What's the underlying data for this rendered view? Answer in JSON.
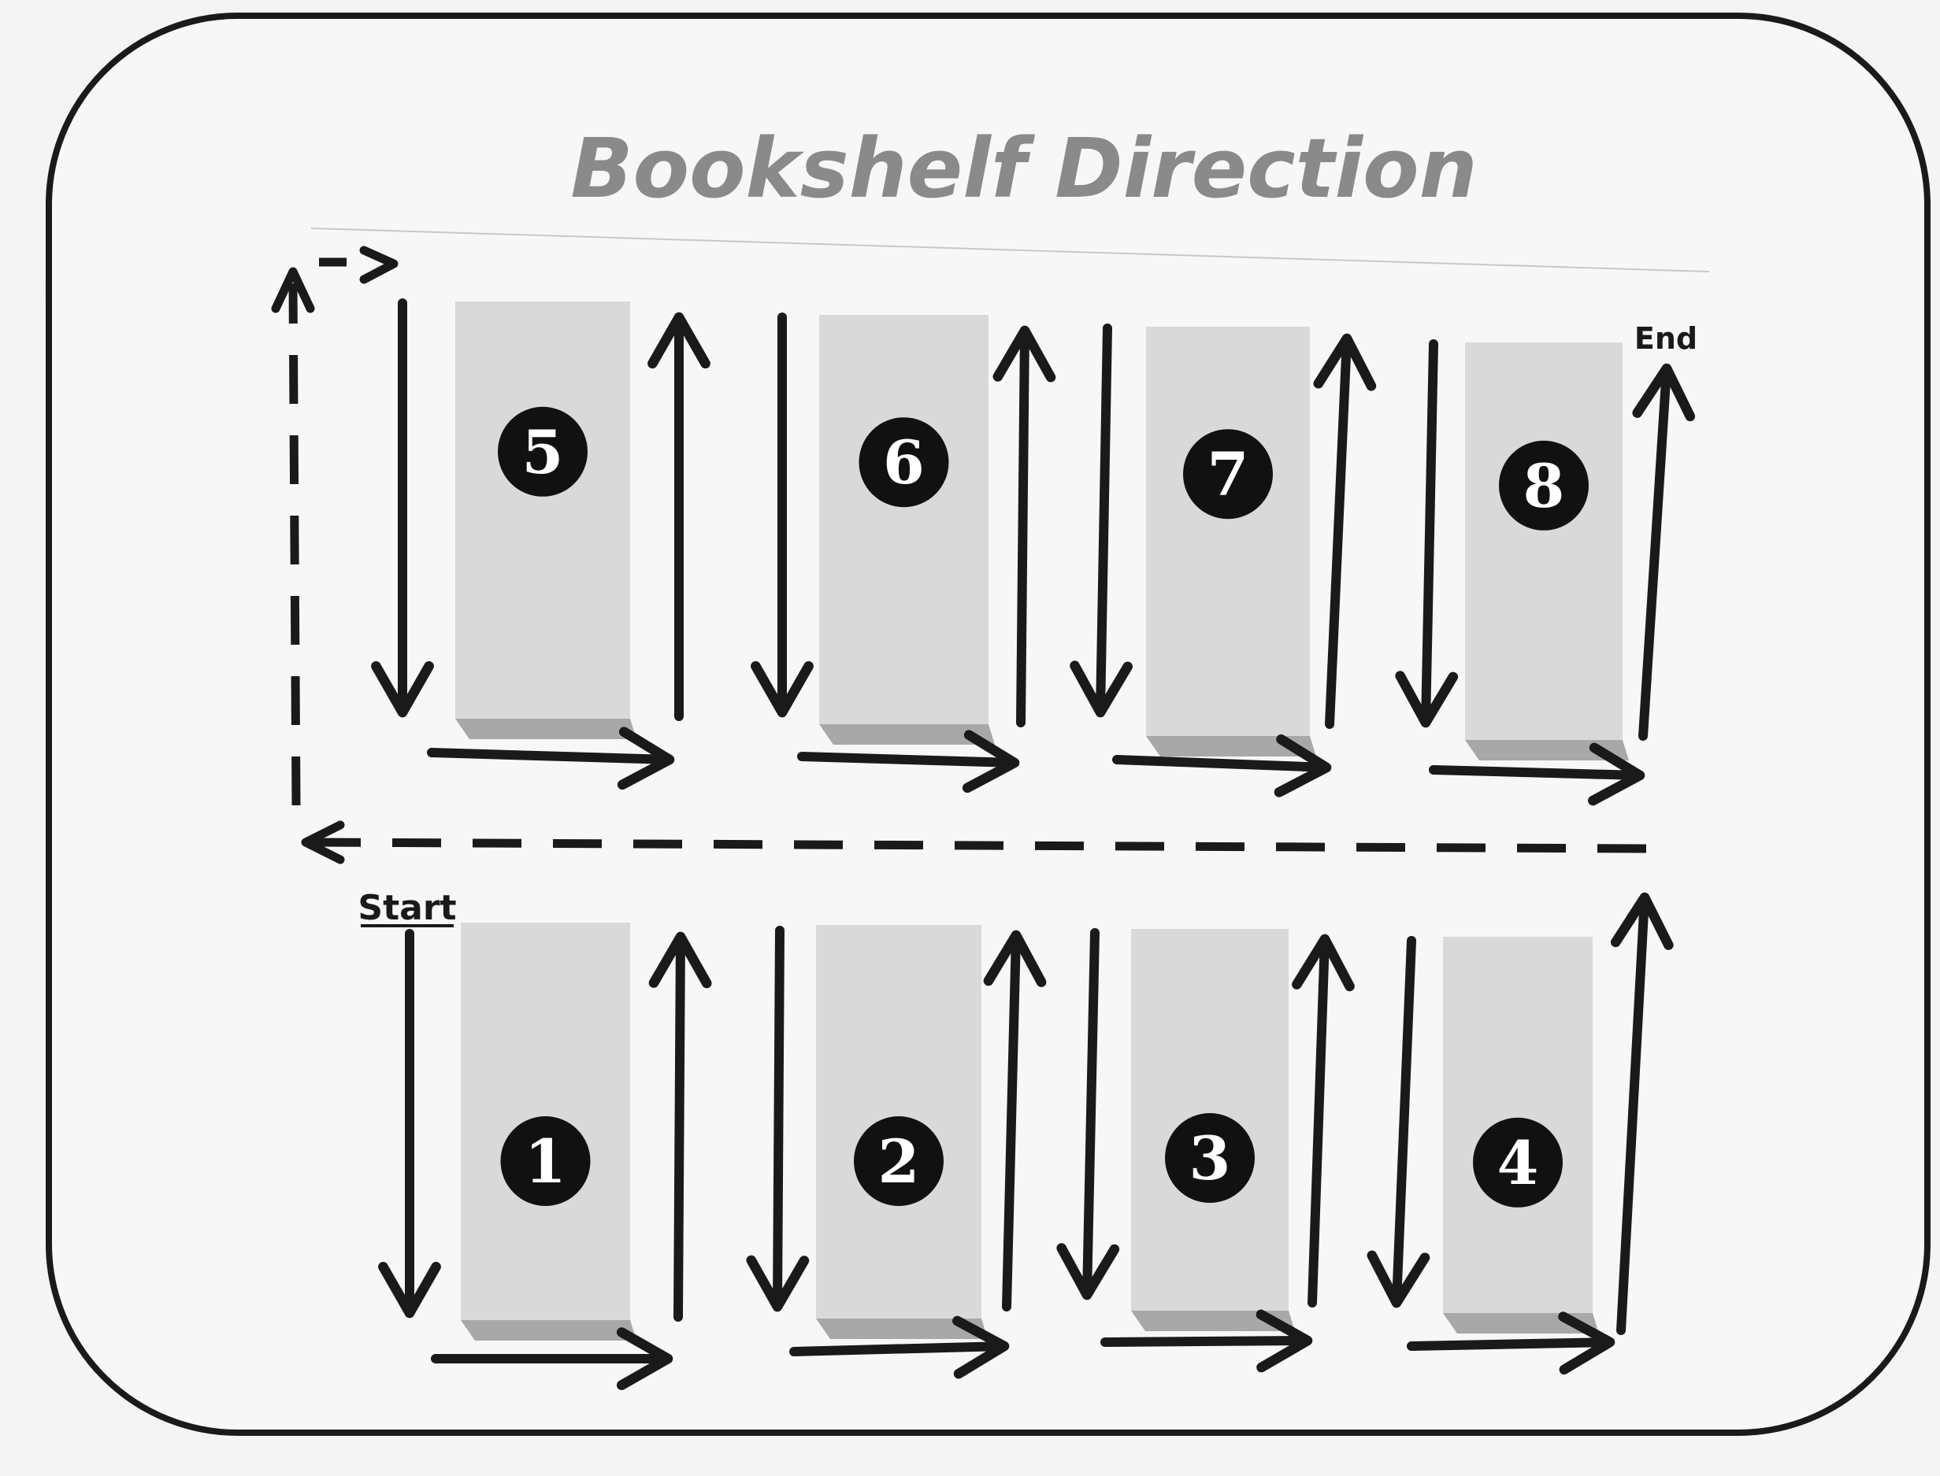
{
  "title": "Bookshelf Direction",
  "start_label": "Start",
  "end_label": "End",
  "shelves": [
    {
      "number": "5",
      "row": "top"
    },
    {
      "number": "6",
      "row": "top"
    },
    {
      "number": "7",
      "row": "top"
    },
    {
      "number": "8",
      "row": "top"
    },
    {
      "number": "1",
      "row": "bottom"
    },
    {
      "number": "2",
      "row": "bottom"
    },
    {
      "number": "3",
      "row": "bottom"
    },
    {
      "number": "4",
      "row": "bottom"
    }
  ],
  "colors": {
    "paper": "#f7f7f7",
    "shelf": "#d9d9d9",
    "shelf_base": "#a8a8a8",
    "arrow": "#1a1a1a",
    "title": "#8a8a8a"
  }
}
